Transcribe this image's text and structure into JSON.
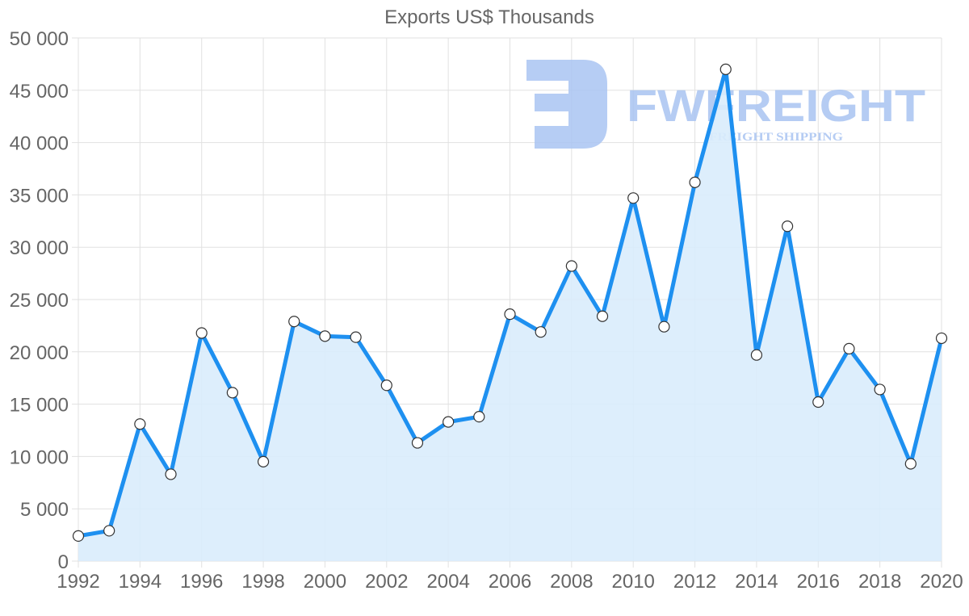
{
  "chart_data": {
    "type": "line",
    "title": "Exports US$ Thousands",
    "xlabel": "",
    "ylabel": "",
    "x": [
      1992,
      1993,
      1994,
      1995,
      1996,
      1997,
      1998,
      1999,
      2000,
      2001,
      2002,
      2003,
      2004,
      2005,
      2006,
      2007,
      2008,
      2009,
      2010,
      2011,
      2012,
      2013,
      2014,
      2015,
      2016,
      2017,
      2018,
      2019,
      2020
    ],
    "series": [
      {
        "name": "Exports US$ Thousands",
        "values": [
          2400,
          2900,
          13100,
          8300,
          21800,
          16100,
          9500,
          22900,
          21500,
          21400,
          16800,
          11300,
          13300,
          13800,
          23600,
          21900,
          28200,
          23400,
          34700,
          22400,
          36200,
          47000,
          19700,
          32000,
          15200,
          20300,
          16400,
          9300,
          21300
        ],
        "color": "#1e90f0",
        "fill": "#d9ecfc"
      }
    ],
    "x_tick_labels": [
      "1992",
      "1994",
      "1996",
      "1998",
      "2000",
      "2002",
      "2004",
      "2006",
      "2008",
      "2010",
      "2012",
      "2014",
      "2016",
      "2018",
      "2020"
    ],
    "y_tick_labels": [
      "0",
      "5 000",
      "10 000",
      "15 000",
      "20 000",
      "25 000",
      "30 000",
      "35 000",
      "40 000",
      "45 000",
      "50 000"
    ],
    "ylim": [
      0,
      50000
    ],
    "xlim": [
      1992,
      2020
    ],
    "grid": true,
    "legend": "none",
    "area_fill": true
  },
  "watermark": {
    "brand": "FWFREIGHT",
    "tagline": "FREIGHT SHIPPING",
    "color": "#a9c4f2"
  }
}
